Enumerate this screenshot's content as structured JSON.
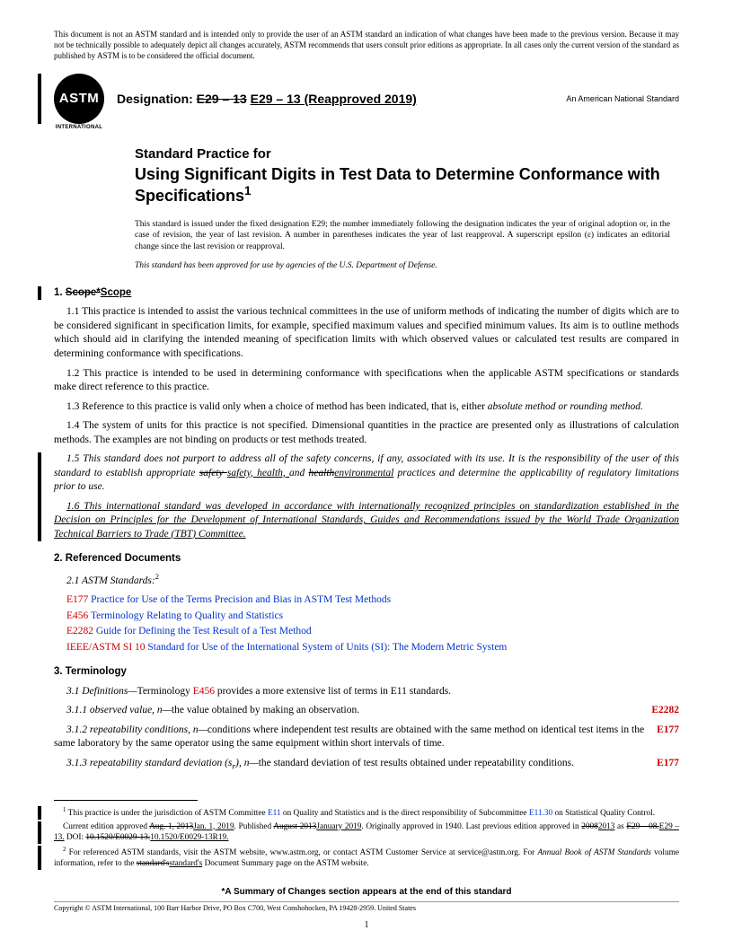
{
  "disclaimer": "This document is not an ASTM standard and is intended only to provide the user of an ASTM standard an indication of what changes have been made to the previous version. Because it may not be technically possible to adequately depict all changes accurately, ASTM recommends that users consult prior editions as appropriate. In all cases only the current version of the standard as published by ASTM is to be considered the official document.",
  "logo": {
    "main": "ASTM",
    "sub": "INTERNATIONAL"
  },
  "designation": {
    "label": "Designation:",
    "struck": "E29 – 13",
    "new": "E29 – 13 (Reapproved 2019)"
  },
  "national": "An American National Standard",
  "title": {
    "prefix": "Standard Practice for",
    "main": "Using Significant Digits in Test Data to Determine Conformance with Specifications"
  },
  "issuance": "This standard is issued under the fixed designation E29; the number immediately following the designation indicates the year of original adoption or, in the case of revision, the year of last revision. A number in parentheses indicates the year of last reapproval. A superscript epsilon (ε) indicates an editorial change since the last revision or reapproval.",
  "dod": "This standard has been approved for use by agencies of the U.S. Department of Defense.",
  "sections": {
    "s1": {
      "num": "1.",
      "struck": "Scope*",
      "new": "Scope"
    },
    "s2": {
      "num": "2.",
      "title": "Referenced Documents"
    },
    "s3": {
      "num": "3.",
      "title": "Terminology"
    }
  },
  "p": {
    "p11": "1.1 This practice is intended to assist the various technical committees in the use of uniform methods of indicating the number of digits which are to be considered significant in specification limits, for example, specified maximum values and specified minimum values. Its aim is to outline methods which should aid in clarifying the intended meaning of specification limits with which observed values or calculated test results are compared in determining conformance with specifications.",
    "p12": "1.2 This practice is intended to be used in determining conformance with specifications when the applicable ASTM specifications or standards make direct reference to this practice.",
    "p13a": "1.3 Reference to this practice is valid only when a choice of method has been indicated, that is, either ",
    "p13b": "absolute method or rounding method.",
    "p14": "1.4 The system of units for this practice is not specified. Dimensional quantities in the practice are presented only as illustrations of calculation methods. The examples are not binding on products or test methods treated.",
    "p15a": "1.5 This standard does not purport to address all of the safety concerns, if any, associated with its use. It is the responsibility of the user of this standard to establish appropriate ",
    "p15s1": "safety ",
    "p15u1": "safety, health, ",
    "p15m": "and ",
    "p15s2": "health",
    "p15u2": "environmental",
    "p15e": " practices and determine the applicability of regulatory limitations prior to use.",
    "p16": "1.6 This international standard was developed in accordance with internationally recognized principles on standardization established in the Decision on Principles for the Development of International Standards, Guides and Recommendations issued by the World Trade Organization Technical Barriers to Trade (TBT) Committee.",
    "p21": "2.1 ASTM Standards:",
    "p31a": "3.1 Definitions—",
    "p31b": "Terminology ",
    "p31c": " provides a more extensive list of terms in E11 standards.",
    "p311a": "3.1.1 observed value, n—",
    "p311b": "the value obtained by making an observation.",
    "p312a": "3.1.2 repeatability conditions, n—",
    "p312b": "conditions where independent test results are obtained with the same method on identical test items in the same laboratory by the same operator using the same equipment within short intervals of time.",
    "p313a": "3.1.3 repeatability standard deviation (s",
    "p313b": "), n—",
    "p313c": "the standard deviation of test results obtained under repeatability conditions."
  },
  "refs": {
    "e177": {
      "id": "E177",
      "text": "Practice for Use of the Terms Precision and Bias in ASTM Test Methods"
    },
    "e456": {
      "id": "E456",
      "text": "Terminology Relating to Quality and Statistics"
    },
    "e2282": {
      "id": "E2282",
      "text": "Guide for Defining the Test Result of a Test Method"
    },
    "si10": {
      "id": "IEEE/ASTM SI 10",
      "text": "Standard for Use of the International System of Units (SI): The Modern Metric System"
    }
  },
  "rightrefs": {
    "r311": "E2282",
    "r312": "E177",
    "r313": "E177"
  },
  "footnotes": {
    "f1a": " This practice is under the jurisdiction of ASTM Committee ",
    "f1b": " on Quality and Statistics and is the direct responsibility of Subcommittee ",
    "f1c": " on Statistical Quality Control.",
    "f1L1": "E11",
    "f1L2": "E11.30",
    "fcur1": "Current edition approved ",
    "fcur_s1": "Aug. 1, 2013",
    "fcur_u1": "Jan. 1, 2019",
    "fcur2": ". Published ",
    "fcur_s2": "August 2013",
    "fcur_u2": "January 2019",
    "fcur3": ". Originally approved in 1940. Last previous edition approved in ",
    "fcur_s3": "2008",
    "fcur_u3": "2013",
    "fcur4": " as ",
    "fcur_s4": "E29 – 08.",
    "fcur_u4": "E29 – 13.",
    "fcur5": " DOI: ",
    "fcur_s5": "10.1520/E0029-13.",
    "fcur_u5": "10.1520/E0029-13R19.",
    "f2a": " For referenced ASTM standards, visit the ASTM website, www.astm.org, or contact ASTM Customer Service at service@astm.org. For ",
    "f2b": "Annual Book of ASTM Standards",
    "f2c": " volume information, refer to the ",
    "f2s": "standard's",
    "f2u": "standard's",
    "f2d": " Document Summary page on the ASTM website."
  },
  "summary": "*A Summary of Changes section appears at the end of this standard",
  "copyright": "Copyright © ASTM International, 100 Barr Harbor Drive, PO Box C700, West Conshohocken, PA 19428-2959. United States",
  "pagenum": "1"
}
